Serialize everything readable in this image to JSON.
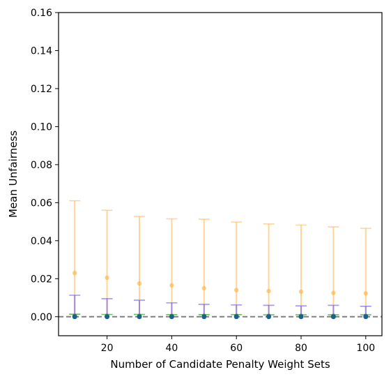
{
  "chart_data": {
    "type": "scatter",
    "xlabel": "Number of Candidate Penalty Weight Sets",
    "ylabel": "Mean Unfairness",
    "xlim": [
      5,
      105
    ],
    "ylim": [
      -0.01,
      0.16
    ],
    "xticks": [
      20,
      40,
      60,
      80,
      100
    ],
    "yticks": [
      0.0,
      0.02,
      0.04,
      0.06,
      0.08,
      0.1,
      0.12,
      0.14,
      0.16
    ],
    "xtick_labels": [
      "20",
      "40",
      "60",
      "80",
      "100"
    ],
    "ytick_labels": [
      "0.00",
      "0.02",
      "0.04",
      "0.06",
      "0.08",
      "0.10",
      "0.12",
      "0.14",
      "0.16"
    ],
    "reference_line": {
      "y": 0,
      "style": "dashed",
      "color": "#808080"
    },
    "grid": false,
    "x": [
      10,
      20,
      30,
      40,
      50,
      60,
      70,
      80,
      90,
      100
    ],
    "series": [
      {
        "color": "#FFB347",
        "values": [
          0.023,
          0.0205,
          0.0175,
          0.0165,
          0.015,
          0.014,
          0.0135,
          0.0132,
          0.0125,
          0.0123
        ],
        "err_upper": [
          0.061,
          0.056,
          0.0528,
          0.0515,
          0.0513,
          0.0498,
          0.0488,
          0.0482,
          0.0472,
          0.0465
        ],
        "err_lower": [
          0,
          0,
          0,
          0,
          0,
          0,
          0,
          0,
          0,
          0
        ]
      },
      {
        "color": "#7B68EE",
        "values": [
          0.0005,
          0.0005,
          0.0005,
          0.0005,
          0.0005,
          0.0005,
          0.0005,
          0.0005,
          0.0005,
          0.0005
        ],
        "err_upper": [
          0.0113,
          0.0095,
          0.0087,
          0.0073,
          0.0065,
          0.0062,
          0.006,
          0.0057,
          0.006,
          0.0055
        ],
        "err_lower": [
          0,
          0,
          0,
          0,
          0,
          0,
          0,
          0,
          0,
          0
        ]
      },
      {
        "color": "#2CA02C",
        "values": [
          0.0003,
          0.0003,
          0.0003,
          0.0003,
          0.0003,
          0.0003,
          0.0003,
          0.0003,
          0.0003,
          0.0003
        ],
        "err_upper": [
          0.0013,
          0.0012,
          0.0012,
          0.0011,
          0.0011,
          0.0011,
          0.001,
          0.001,
          0.001,
          0.001
        ],
        "err_lower": [
          0,
          0,
          0,
          0,
          0,
          0,
          0,
          0,
          0,
          0
        ]
      },
      {
        "color": "#1F5F8B",
        "values": [
          0,
          0,
          0,
          0,
          0,
          0,
          0,
          0,
          0,
          0
        ],
        "err_upper": [
          0,
          0,
          0,
          0,
          0,
          0,
          0,
          0,
          0,
          0
        ],
        "err_lower": [
          0,
          0,
          0,
          0,
          0,
          0,
          0,
          0,
          0,
          0
        ]
      }
    ]
  }
}
